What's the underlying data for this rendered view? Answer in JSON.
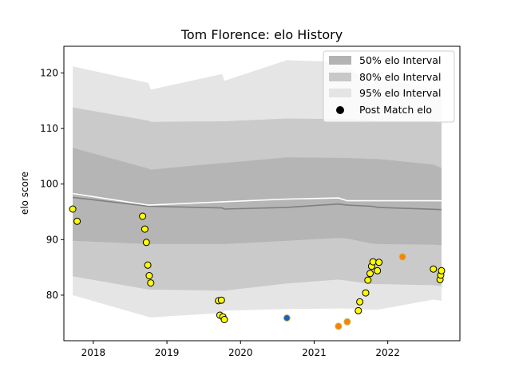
{
  "chart_data": {
    "type": "scatter",
    "title": "Tom Florence: elo History",
    "xlabel": "",
    "ylabel": "elo score",
    "xlim": [
      2017.6,
      2022.98
    ],
    "ylim": [
      71.8,
      124.8
    ],
    "x_ticks": [
      {
        "value": 2018,
        "label": "2018"
      },
      {
        "value": 2019,
        "label": "2019"
      },
      {
        "value": 2020,
        "label": "2020"
      },
      {
        "value": 2021,
        "label": "2021"
      },
      {
        "value": 2022,
        "label": "2022"
      }
    ],
    "y_ticks": [
      {
        "value": 80,
        "label": "80"
      },
      {
        "value": 90,
        "label": "90"
      },
      {
        "value": 100,
        "label": "100"
      },
      {
        "value": 110,
        "label": "110"
      },
      {
        "value": 120,
        "label": "120"
      }
    ],
    "grid": false,
    "legend_placement": "top-right",
    "legend": {
      "entries": [
        {
          "label": "50% elo Interval",
          "kind": "patch",
          "color": "#b3b3b3"
        },
        {
          "label": "80% elo Interval",
          "kind": "patch",
          "color": "#c8c8c8"
        },
        {
          "label": "95% elo Interval",
          "kind": "patch",
          "color": "#e4e4e4"
        },
        {
          "label": "Post Match elo",
          "kind": "marker",
          "color": "#000000"
        }
      ]
    },
    "colors": {
      "band_50": "#b3b3b3",
      "band_80": "#c8c8c8",
      "band_95": "#e4e4e4",
      "mean_line": "#ffffff",
      "median_line": "#808080",
      "marker_fill": "#ffff00",
      "marker_edge_default": "#000000",
      "marker_edge_orange": "#ff7f0e",
      "marker_edge_blue": "#1f5fbf"
    },
    "bands": {
      "x": [
        2017.72,
        2018.75,
        2018.78,
        2019.75,
        2019.78,
        2020.63,
        2021.33,
        2021.45,
        2021.78,
        2021.87,
        2022.62,
        2022.73
      ],
      "p95_upper": [
        121.2,
        118.2,
        117.0,
        119.8,
        118.6,
        122.3,
        122.0,
        121.2,
        117.8,
        119.0,
        117.2,
        116.0
      ],
      "p80_upper": [
        113.8,
        111.4,
        111.2,
        111.3,
        111.3,
        111.8,
        111.7,
        111.7,
        111.5,
        111.4,
        111.4,
        111.0
      ],
      "p50_upper": [
        106.5,
        102.8,
        102.6,
        103.8,
        103.8,
        104.8,
        104.7,
        104.7,
        104.5,
        104.5,
        103.5,
        102.9
      ],
      "p50_lower": [
        89.8,
        89.2,
        89.2,
        89.2,
        89.2,
        89.8,
        90.3,
        90.2,
        89.3,
        89.2,
        89.1,
        89.0
      ],
      "p80_lower": [
        83.4,
        81.0,
        81.0,
        80.8,
        80.8,
        82.1,
        82.8,
        82.6,
        82.0,
        82.0,
        81.8,
        81.6
      ],
      "p95_lower": [
        80.0,
        76.1,
        76.0,
        76.8,
        77.2,
        77.5,
        77.6,
        77.6,
        77.4,
        77.4,
        79.2,
        79.0
      ]
    },
    "mean_line": {
      "x": [
        2017.72,
        2018.75,
        2019.75,
        2020.63,
        2021.33,
        2021.45,
        2022.73
      ],
      "y": [
        98.3,
        96.2,
        96.8,
        97.3,
        97.5,
        97.0,
        97.0
      ]
    },
    "median_line": {
      "x": [
        2017.72,
        2018.75,
        2019.75,
        2019.78,
        2020.63,
        2021.33,
        2021.45,
        2021.78,
        2021.87,
        2022.73
      ],
      "y": [
        97.6,
        96.0,
        95.7,
        95.5,
        95.8,
        96.4,
        96.2,
        96.0,
        95.8,
        95.4
      ]
    },
    "points": [
      {
        "x": 2017.72,
        "y": 95.5,
        "edge": "default"
      },
      {
        "x": 2017.78,
        "y": 93.3,
        "edge": "default"
      },
      {
        "x": 2018.67,
        "y": 94.2,
        "edge": "default"
      },
      {
        "x": 2018.7,
        "y": 91.9,
        "edge": "default"
      },
      {
        "x": 2018.72,
        "y": 89.5,
        "edge": "default"
      },
      {
        "x": 2018.74,
        "y": 85.4,
        "edge": "default"
      },
      {
        "x": 2018.76,
        "y": 83.5,
        "edge": "default"
      },
      {
        "x": 2018.78,
        "y": 82.2,
        "edge": "default"
      },
      {
        "x": 2019.7,
        "y": 79.0,
        "edge": "default"
      },
      {
        "x": 2019.74,
        "y": 79.1,
        "edge": "default"
      },
      {
        "x": 2019.72,
        "y": 76.4,
        "edge": "default"
      },
      {
        "x": 2019.76,
        "y": 76.1,
        "edge": "default"
      },
      {
        "x": 2019.78,
        "y": 75.6,
        "edge": "default"
      },
      {
        "x": 2020.63,
        "y": 75.9,
        "edge": "blue"
      },
      {
        "x": 2021.33,
        "y": 74.4,
        "edge": "orange"
      },
      {
        "x": 2021.45,
        "y": 75.2,
        "edge": "orange"
      },
      {
        "x": 2021.6,
        "y": 77.2,
        "edge": "default"
      },
      {
        "x": 2021.62,
        "y": 78.8,
        "edge": "default"
      },
      {
        "x": 2021.7,
        "y": 80.4,
        "edge": "default"
      },
      {
        "x": 2021.73,
        "y": 82.7,
        "edge": "default"
      },
      {
        "x": 2021.76,
        "y": 83.9,
        "edge": "default"
      },
      {
        "x": 2021.78,
        "y": 85.2,
        "edge": "default"
      },
      {
        "x": 2021.8,
        "y": 86.0,
        "edge": "default"
      },
      {
        "x": 2021.86,
        "y": 84.4,
        "edge": "default"
      },
      {
        "x": 2021.88,
        "y": 85.9,
        "edge": "default"
      },
      {
        "x": 2022.2,
        "y": 86.9,
        "edge": "orange"
      },
      {
        "x": 2022.62,
        "y": 84.7,
        "edge": "default"
      },
      {
        "x": 2022.71,
        "y": 82.8,
        "edge": "default"
      },
      {
        "x": 2022.72,
        "y": 83.6,
        "edge": "default"
      },
      {
        "x": 2022.73,
        "y": 84.4,
        "edge": "default"
      }
    ]
  }
}
